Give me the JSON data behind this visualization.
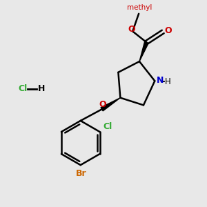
{
  "background_color": "#e8e8e8",
  "bond_color": "#000000",
  "bond_width": 1.8,
  "figsize": [
    3.0,
    3.0
  ],
  "dpi": 100,
  "colors": {
    "N": "#0000cc",
    "O": "#cc0000",
    "Cl": "#33aa33",
    "Br": "#cc6600",
    "C": "#000000",
    "H": "#000000"
  }
}
